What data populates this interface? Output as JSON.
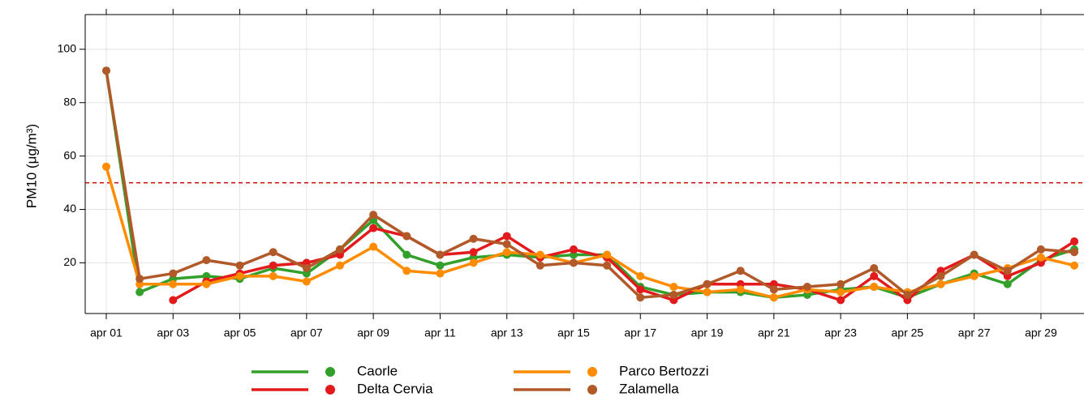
{
  "chart_data": {
    "type": "line",
    "y_label": "PM10 (μg/m³)",
    "categories": [
      "apr 01",
      null,
      "apr 03",
      null,
      "apr 05",
      null,
      "apr 07",
      null,
      "apr 09",
      null,
      "apr 11",
      null,
      "apr 13",
      null,
      "apr 15",
      null,
      "apr 17",
      null,
      "apr 19",
      null,
      "apr 21",
      null,
      "apr 23",
      null,
      "apr 25",
      null,
      "apr 27",
      null,
      "apr 29",
      null
    ],
    "series": [
      {
        "name": "Caorle",
        "color": "#33a02c",
        "values": [
          92,
          9,
          14,
          15,
          14,
          18,
          16,
          25,
          36,
          23,
          19,
          22,
          23,
          22,
          23,
          23,
          11,
          8,
          9,
          9,
          7,
          8,
          10,
          11,
          7,
          12,
          16,
          12,
          21,
          25
        ]
      },
      {
        "name": "Delta Cervia",
        "color": "#e31a1c",
        "values": [
          null,
          null,
          6,
          13,
          16,
          19,
          20,
          23,
          33,
          30,
          23,
          24,
          30,
          22,
          25,
          22,
          10,
          6,
          12,
          12,
          12,
          10,
          6,
          15,
          6,
          17,
          23,
          15,
          20,
          28
        ]
      },
      {
        "name": "Parco Bertozzi",
        "color": "#ff8c00",
        "values": [
          56,
          12,
          12,
          12,
          15,
          15,
          13,
          19,
          26,
          17,
          16,
          20,
          24,
          23,
          20,
          23,
          15,
          11,
          9,
          10,
          7,
          10,
          9,
          11,
          9,
          12,
          15,
          18,
          22,
          19
        ]
      },
      {
        "name": "Zalamella",
        "color": "#b15928",
        "values": [
          92,
          14,
          16,
          21,
          19,
          24,
          18,
          25,
          38,
          30,
          23,
          29,
          27,
          19,
          20,
          19,
          7,
          8,
          12,
          17,
          10,
          11,
          12,
          18,
          8,
          15,
          23,
          17,
          25,
          24
        ]
      }
    ],
    "ylim": [
      1,
      113
    ],
    "yticks": [
      20,
      40,
      60,
      80,
      100
    ],
    "grid": true,
    "hline": 50,
    "hline_color": "#cc0000"
  }
}
